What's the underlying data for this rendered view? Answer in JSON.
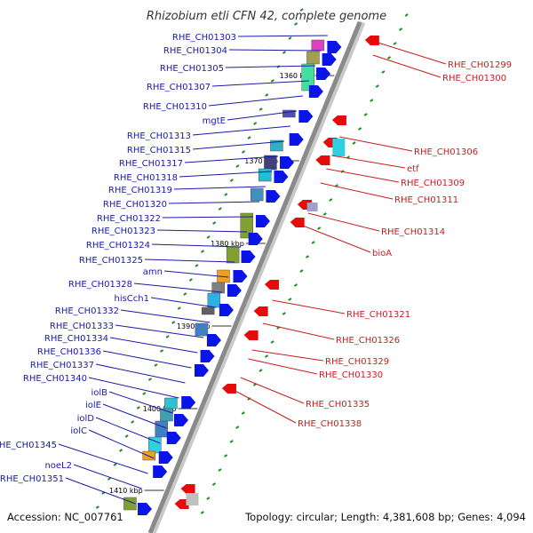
{
  "title": "Rhizobium etli CFN 42, complete genome",
  "footer": {
    "accession": "Accession: NC_007761",
    "summary": "Topology: circular; Length: 4,381,608 bp; Genes: 4,094"
  },
  "colors": {
    "forward_label": "#1a1aa8",
    "reverse_label": "#c81e1e",
    "backbone": "#8a8a8a",
    "forward_gene": "#0a14e6",
    "reverse_gene": "#e60a0a",
    "rna_tick": "#2a8a2a"
  },
  "scale_labels": [
    "1360 kbp",
    "1370 kbp",
    "1380 kbp",
    "1390 kbp",
    "1400 kbp",
    "1410 kbp"
  ],
  "left_labels": [
    "RHE_CH01303",
    "RHE_CH01304",
    "RHE_CH01305",
    "RHE_CH01307",
    "RHE_CH01310",
    "mgtE",
    "RHE_CH01313",
    "RHE_CH01315",
    "RHE_CH01317",
    "RHE_CH01318",
    "RHE_CH01319",
    "RHE_CH01320",
    "RHE_CH01322",
    "RHE_CH01323",
    "RHE_CH01324",
    "RHE_CH01325",
    "amn",
    "RHE_CH01328",
    "hisCch1",
    "RHE_CH01332",
    "RHE_CH01333",
    "RHE_CH01334",
    "RHE_CH01336",
    "RHE_CH01337",
    "RHE_CH01340",
    "iolB",
    "iolE",
    "iolD",
    "iolC",
    "RHE_CH01345",
    "noeL2",
    "RHE_CH01351"
  ],
  "right_labels": [
    "RHE_CH01299",
    "RHE_CH01300",
    "RHE_CH01306",
    "etf",
    "RHE_CH01309",
    "RHE_CH01311",
    "RHE_CH01314",
    "bioA",
    "RHE_CH01321",
    "RHE_CH01326",
    "RHE_CH01329",
    "RHE_CH01330",
    "RHE_CH01335",
    "RHE_CH01338"
  ]
}
